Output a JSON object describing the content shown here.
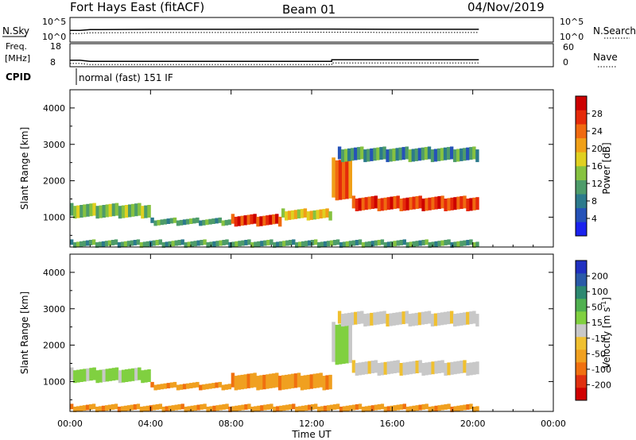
{
  "header": {
    "station": "Fort Hays East (fitACF)",
    "beam": "Beam 01",
    "date": "04/Nov/2019"
  },
  "chart_data": [
    {
      "type": "line",
      "name": "noise-panel",
      "left_label": "N.Sky",
      "right_label": "N.Search",
      "left_ticks": [
        "10^5",
        "10^0"
      ],
      "right_ticks": [
        "10^5",
        "10^0"
      ],
      "x": [
        0.0,
        0.5,
        1.0,
        4.0,
        8.0,
        12.0,
        13.0,
        16.0,
        20.3
      ],
      "series": [
        {
          "values": [
            2.2,
            2.2,
            2.5,
            2.6,
            2.6,
            2.7,
            2.7,
            2.6,
            2.6
          ]
        }
      ]
    },
    {
      "type": "line",
      "name": "freq-panel",
      "left_label_1": "Freq.",
      "left_label_2": "[MHz]",
      "right_label": "Nave",
      "left_ticks": [
        "18",
        "8"
      ],
      "right_ticks": [
        "60",
        "0"
      ],
      "x": [
        0.0,
        0.5,
        1.0,
        13.0,
        13.0,
        20.3
      ],
      "series": [
        {
          "values": [
            10.8,
            10.8,
            10.3,
            10.3,
            11.0,
            11.0
          ]
        }
      ],
      "cpid_label": "CPID",
      "cpid_text": "normal (fast) 151 IF"
    },
    {
      "type": "heatmap",
      "name": "power-panel",
      "ylabel": "Slant Range [km]",
      "yticks": [
        1000,
        2000,
        3000,
        4000
      ],
      "ylim": [
        180,
        4500
      ],
      "xlim": [
        0,
        24
      ],
      "colorbar_label": "Power [dB]",
      "colorbar_ticks": [
        "4",
        "8",
        "12",
        "16",
        "20",
        "24",
        "28"
      ],
      "colorbar_colors": [
        "#1a22ee",
        "#2552b8",
        "#2c7a8c",
        "#4e9c6a",
        "#86c240",
        "#e0d020",
        "#f0a018",
        "#f06a10",
        "#e52a0a",
        "#cc0000"
      ],
      "bands": [
        {
          "t0": 0.0,
          "t1": 4.0,
          "r0": 1000,
          "r1": 1350,
          "level": 0.4
        },
        {
          "t0": 4.0,
          "t1": 8.0,
          "r0": 800,
          "r1": 950,
          "level": 0.35
        },
        {
          "t0": 8.0,
          "t1": 10.5,
          "r0": 780,
          "r1": 1050,
          "level": 0.85
        },
        {
          "t0": 10.5,
          "t1": 13.0,
          "r0": 950,
          "r1": 1200,
          "level": 0.55
        },
        {
          "t0": 13.0,
          "t1": 14.0,
          "r0": 1500,
          "r1": 2600,
          "level": 0.75
        },
        {
          "t0": 14.0,
          "t1": 20.3,
          "r0": 1200,
          "r1": 1550,
          "level": 0.8
        },
        {
          "t0": 13.3,
          "t1": 20.3,
          "r0": 2550,
          "r1": 2900,
          "level": 0.3
        },
        {
          "t0": 0.0,
          "t1": 20.3,
          "r0": 200,
          "r1": 350,
          "level": 0.35
        }
      ]
    },
    {
      "type": "heatmap",
      "name": "velocity-panel",
      "ylabel": "Slant Range [km]",
      "yticks": [
        1000,
        2000,
        3000,
        4000
      ],
      "ylim": [
        180,
        4500
      ],
      "xlim": [
        0,
        24
      ],
      "colorbar_label_main": "Velocity [m s",
      "colorbar_label_sup": "-1",
      "colorbar_label_end": "]",
      "colorbar_ticks": [
        "200",
        "100",
        "50",
        "15",
        "-15",
        "-50",
        "-100",
        "-200"
      ],
      "colorbar_colors": [
        "#2030c0",
        "#2a5aa8",
        "#2c8870",
        "#50b050",
        "#80d040",
        "#c8c8c8",
        "#f0c030",
        "#f0a020",
        "#f07010",
        "#e03010",
        "#d00000"
      ],
      "bands": [
        {
          "t0": 0.0,
          "t1": 4.0,
          "r0": 1000,
          "r1": 1350,
          "color": 4
        },
        {
          "t0": 4.0,
          "t1": 8.0,
          "r0": 800,
          "r1": 950,
          "color": 7
        },
        {
          "t0": 8.0,
          "t1": 13.0,
          "r0": 800,
          "r1": 1200,
          "color": 7
        },
        {
          "t0": 13.0,
          "t1": 14.0,
          "r0": 1500,
          "r1": 2600,
          "color": 4
        },
        {
          "t0": 14.0,
          "t1": 20.3,
          "r0": 1200,
          "r1": 1550,
          "color": 5
        },
        {
          "t0": 13.3,
          "t1": 20.3,
          "r0": 2550,
          "r1": 2900,
          "color": 5
        },
        {
          "t0": 0.0,
          "t1": 20.3,
          "r0": 200,
          "r1": 350,
          "color": 7
        }
      ]
    }
  ],
  "x_axis": {
    "ticks": [
      "00:00",
      "04:00",
      "08:00",
      "12:00",
      "16:00",
      "20:00",
      "00:00"
    ],
    "label": "Time UT"
  }
}
